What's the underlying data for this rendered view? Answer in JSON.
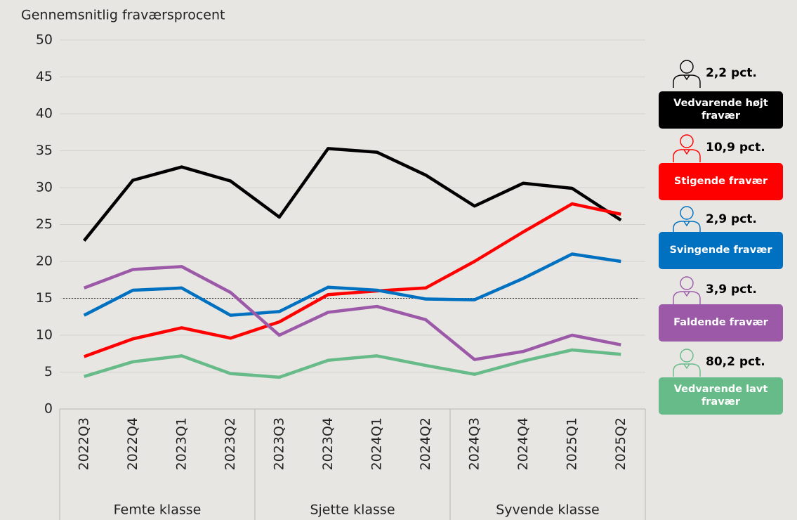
{
  "chart_data": {
    "type": "line",
    "ylabel": "Gennemsnitlig fraværsprocent",
    "categories": [
      "2022Q3",
      "2022Q4",
      "2023Q1",
      "2023Q2",
      "2023Q3",
      "2023Q4",
      "2024Q1",
      "2024Q2",
      "2024Q3",
      "2024Q4",
      "2025Q1",
      "2025Q2"
    ],
    "groups": [
      {
        "label": "Femte klasse",
        "span": 4
      },
      {
        "label": "Sjette klasse",
        "span": 4
      },
      {
        "label": "Syvende klasse",
        "span": 4
      }
    ],
    "ylim": [
      0,
      50
    ],
    "yticks": [
      0,
      5,
      10,
      15,
      20,
      25,
      30,
      35,
      40,
      45,
      50
    ],
    "grid": true,
    "reference_line": 15,
    "series": [
      {
        "name": "Vedvarende højt fravær",
        "share": "2,2 pct.",
        "color": "#000000",
        "values": [
          22.8,
          31,
          32.8,
          30.9,
          26,
          35.3,
          34.8,
          31.7,
          27.5,
          30.6,
          29.9,
          25.6
        ]
      },
      {
        "name": "Stigende fravær",
        "share": "10,9 pct.",
        "color": "#ff0000",
        "values": [
          7.1,
          9.5,
          11,
          9.6,
          11.8,
          15.5,
          16,
          16.4,
          20,
          24,
          27.8,
          26.4
        ]
      },
      {
        "name": "Svingende fravær",
        "share": "2,9 pct.",
        "color": "#0070c0",
        "values": [
          12.7,
          16.1,
          16.4,
          12.7,
          13.2,
          16.5,
          16.1,
          14.9,
          14.8,
          17.7,
          21,
          20
        ]
      },
      {
        "name": "Faldende fravær",
        "share": "3,9 pct.",
        "color": "#9b59a8",
        "values": [
          16.4,
          18.9,
          19.3,
          15.8,
          10,
          13.1,
          13.9,
          12.1,
          6.7,
          7.8,
          10,
          8.7
        ]
      },
      {
        "name": "Vedvarende lavt fravær",
        "share": "80,2 pct.",
        "color": "#66bb88",
        "values": [
          4.4,
          6.4,
          7.2,
          4.8,
          4.3,
          6.6,
          7.2,
          5.9,
          4.7,
          6.5,
          8,
          7.4
        ]
      }
    ]
  }
}
